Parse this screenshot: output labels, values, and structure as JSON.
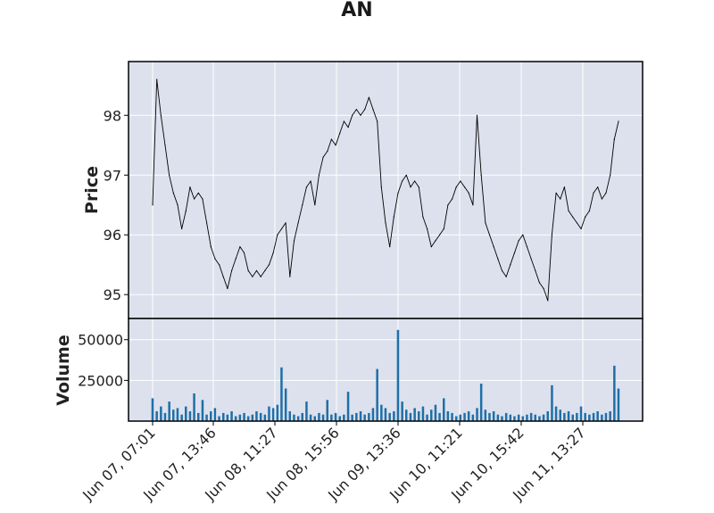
{
  "chart_data": {
    "type": "candlestick",
    "title": "AN",
    "price_panel": {
      "ylabel": "Price",
      "ylim": [
        94.6,
        98.9
      ],
      "yticks": [
        "95",
        "96",
        "97",
        "98"
      ],
      "grid": true,
      "series": [
        {
          "values": [
            96.5,
            98.6,
            98.0,
            97.5,
            97.0,
            96.7,
            96.5,
            96.1,
            96.4,
            96.8,
            96.6,
            96.7,
            96.6,
            96.2,
            95.8,
            95.6,
            95.5,
            95.3,
            95.1,
            95.4,
            95.6,
            95.8,
            95.7,
            95.4,
            95.3,
            95.4,
            95.3,
            95.4,
            95.5,
            95.7,
            96.0,
            96.1,
            96.2,
            95.3,
            95.9,
            96.2,
            96.5,
            96.8,
            96.9,
            96.5,
            97.0,
            97.3,
            97.4,
            97.6,
            97.5,
            97.7,
            97.9,
            97.8,
            98.0,
            98.1,
            98.0,
            98.1,
            98.3,
            98.1,
            97.9,
            96.8,
            96.2,
            95.8,
            96.3,
            96.7,
            96.9,
            97.0,
            96.8,
            96.9,
            96.8,
            96.3,
            96.1,
            95.8,
            95.9,
            96.0,
            96.1,
            96.5,
            96.6,
            96.8,
            96.9,
            96.8,
            96.7,
            96.5,
            98.0,
            97.0,
            96.2,
            96.0,
            95.8,
            95.6,
            95.4,
            95.3,
            95.5,
            95.7,
            95.9,
            96.0,
            95.8,
            95.6,
            95.4,
            95.2,
            95.1,
            94.9,
            96.0,
            96.7,
            96.6,
            96.8,
            96.4,
            96.3,
            96.2,
            96.1,
            96.3,
            96.4,
            96.7,
            96.8,
            96.6,
            96.7,
            97.0,
            97.6,
            97.9
          ]
        }
      ]
    },
    "volume_panel": {
      "ylabel": "Volume",
      "ylim": [
        0,
        63000
      ],
      "yticks": [
        "25000",
        "50000"
      ],
      "series": [
        {
          "values": [
            14000,
            6000,
            9000,
            5000,
            12000,
            7000,
            8000,
            4000,
            9000,
            6000,
            17000,
            5000,
            13000,
            4000,
            6000,
            8000,
            3000,
            5000,
            4000,
            6000,
            3000,
            4000,
            5000,
            3000,
            4000,
            6000,
            5000,
            4000,
            9000,
            8000,
            10000,
            33000,
            20000,
            6000,
            4000,
            3000,
            5000,
            12000,
            4000,
            3000,
            5000,
            4000,
            13000,
            4000,
            5000,
            3000,
            4000,
            18000,
            4000,
            5000,
            6000,
            4000,
            5000,
            8000,
            32000,
            10000,
            8000,
            5000,
            6000,
            56000,
            12000,
            7000,
            5000,
            8000,
            6000,
            9000,
            4000,
            7000,
            10000,
            5000,
            14000,
            6000,
            5000,
            3000,
            4000,
            5000,
            6000,
            4000,
            8000,
            23000,
            7000,
            5000,
            6000,
            4000,
            3000,
            5000,
            4000,
            3000,
            4000,
            3000,
            4000,
            5000,
            4000,
            3000,
            4000,
            6000,
            22000,
            9000,
            7000,
            5000,
            6000,
            4000,
            5000,
            9000,
            5000,
            4000,
            5000,
            6000,
            4000,
            5000,
            6000,
            34000,
            20000
          ]
        }
      ]
    },
    "x_tick_labels": [
      "Jun 07, 07:01",
      "Jun 07, 13:46",
      "Jun 08, 11:27",
      "Jun 08, 15:56",
      "Jun 09, 13:36",
      "Jun 10, 11:21",
      "Jun 10, 15:42",
      "Jun 11, 13:27"
    ]
  },
  "colors": {
    "panel_bg": "#dce1ed",
    "grid": "#ffffff",
    "price_line": "#000000",
    "volume_bar": "#1f6fa8",
    "frame": "#000000"
  }
}
